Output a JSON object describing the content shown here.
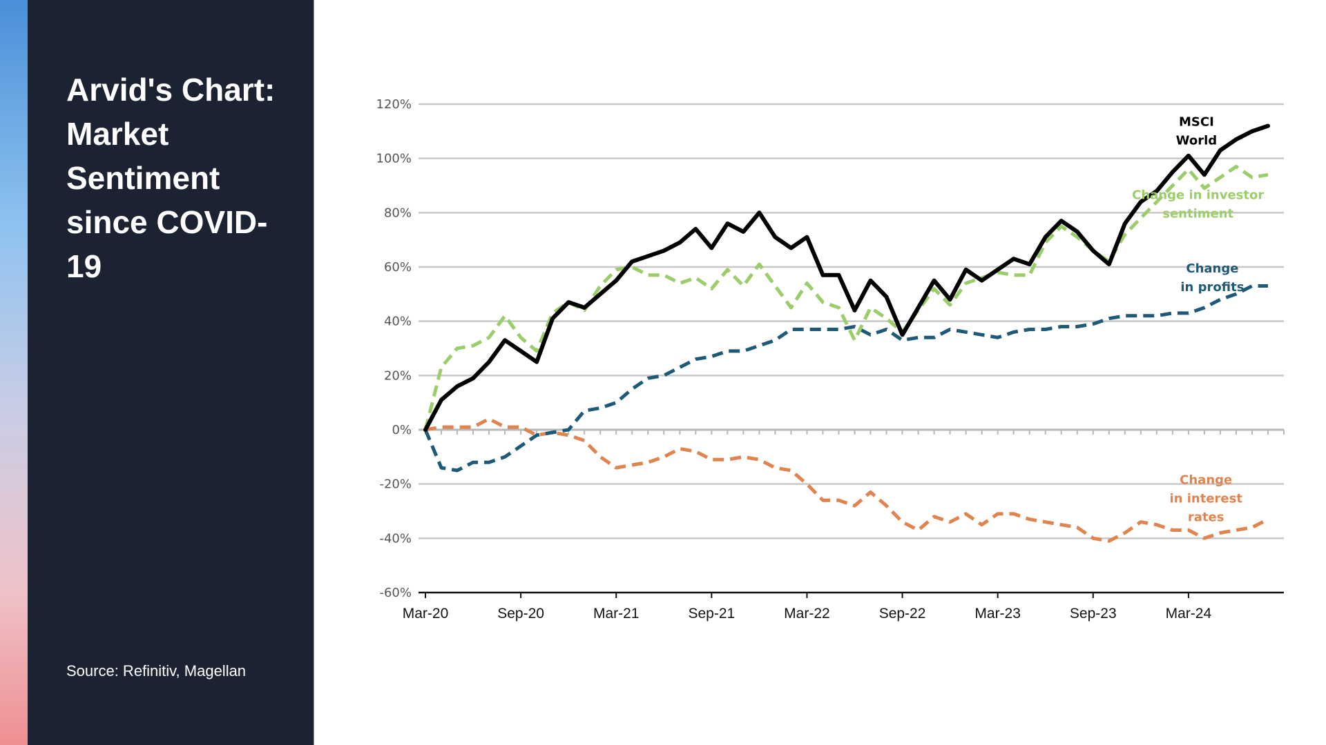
{
  "sidebar": {
    "title": "Arvid's Chart: Market Sentiment since COVID-19",
    "source": "Source: Refinitiv, Magellan"
  },
  "colors": {
    "sidebar_bg": "#1b2231",
    "msci": "#000000",
    "investor": "#9ccd6b",
    "profits": "#1e5a78",
    "rates": "#e0844f",
    "grid": "#c8c8c8"
  },
  "chart_data": {
    "type": "line",
    "title": "",
    "xlabel": "",
    "ylabel": "",
    "ylim": [
      -60,
      120
    ],
    "yticks": [
      120,
      100,
      80,
      60,
      40,
      20,
      0,
      -20,
      -40,
      -60
    ],
    "ytick_labels": [
      "120%",
      "100%",
      "80%",
      "60%",
      "40%",
      "20%",
      "0%",
      "-20%",
      "-40%",
      "-60%"
    ],
    "xlim": [
      0,
      54
    ],
    "xtick_positions": [
      0,
      6,
      12,
      18,
      24,
      30,
      36,
      42,
      48
    ],
    "xtick_labels": [
      "Mar-20",
      "Sep-20",
      "Mar-21",
      "Sep-21",
      "Mar-22",
      "Sep-22",
      "Mar-23",
      "Sep-23",
      "Mar-24"
    ],
    "series": [
      {
        "name": "MSCI World",
        "label_lines": [
          "MSCI",
          "World"
        ],
        "style": "solid",
        "color": "#000000",
        "label_at": [
          48.5,
          112
        ],
        "label_anchor": "middle",
        "points": [
          [
            0,
            0
          ],
          [
            1,
            11
          ],
          [
            2,
            16
          ],
          [
            3,
            19
          ],
          [
            4,
            25
          ],
          [
            5,
            33
          ],
          [
            6,
            29
          ],
          [
            7,
            25
          ],
          [
            8,
            41
          ],
          [
            9,
            47
          ],
          [
            10,
            45
          ],
          [
            11,
            50
          ],
          [
            12,
            55
          ],
          [
            13,
            62
          ],
          [
            14,
            64
          ],
          [
            15,
            66
          ],
          [
            16,
            69
          ],
          [
            17,
            74
          ],
          [
            18,
            67
          ],
          [
            19,
            76
          ],
          [
            20,
            73
          ],
          [
            21,
            80
          ],
          [
            22,
            71
          ],
          [
            23,
            67
          ],
          [
            24,
            71
          ],
          [
            25,
            57
          ],
          [
            26,
            57
          ],
          [
            27,
            44
          ],
          [
            28,
            55
          ],
          [
            29,
            49
          ],
          [
            30,
            35
          ],
          [
            31,
            45
          ],
          [
            32,
            55
          ],
          [
            33,
            48
          ],
          [
            34,
            59
          ],
          [
            35,
            55
          ],
          [
            36,
            59
          ],
          [
            37,
            63
          ],
          [
            38,
            61
          ],
          [
            39,
            71
          ],
          [
            40,
            77
          ],
          [
            41,
            73
          ],
          [
            42,
            66
          ],
          [
            43,
            61
          ],
          [
            44,
            76
          ],
          [
            45,
            84
          ],
          [
            46,
            88
          ],
          [
            47,
            95
          ],
          [
            48,
            101
          ],
          [
            49,
            94
          ],
          [
            50,
            103
          ],
          [
            51,
            107
          ],
          [
            52,
            110
          ],
          [
            53,
            112
          ]
        ]
      },
      {
        "name": "Change in investor sentiment",
        "label_lines": [
          "Change in investor",
          "sentiment"
        ],
        "style": "dashed",
        "color": "#9ccd6b",
        "label_at": [
          48.6,
          85
        ],
        "label_anchor": "middle",
        "points": [
          [
            0,
            0
          ],
          [
            1,
            23
          ],
          [
            2,
            30
          ],
          [
            3,
            31
          ],
          [
            4,
            34
          ],
          [
            5,
            42
          ],
          [
            6,
            34
          ],
          [
            7,
            29
          ],
          [
            8,
            43
          ],
          [
            9,
            47
          ],
          [
            10,
            44
          ],
          [
            11,
            53
          ],
          [
            12,
            59
          ],
          [
            13,
            60
          ],
          [
            14,
            57
          ],
          [
            15,
            57
          ],
          [
            16,
            54
          ],
          [
            17,
            56
          ],
          [
            18,
            52
          ],
          [
            19,
            59
          ],
          [
            20,
            53
          ],
          [
            21,
            61
          ],
          [
            22,
            53
          ],
          [
            23,
            45
          ],
          [
            24,
            54
          ],
          [
            25,
            47
          ],
          [
            26,
            45
          ],
          [
            27,
            33
          ],
          [
            28,
            45
          ],
          [
            29,
            41
          ],
          [
            30,
            36
          ],
          [
            31,
            44
          ],
          [
            32,
            52
          ],
          [
            33,
            46
          ],
          [
            34,
            54
          ],
          [
            35,
            56
          ],
          [
            36,
            58
          ],
          [
            37,
            57
          ],
          [
            38,
            57
          ],
          [
            39,
            69
          ],
          [
            40,
            75
          ],
          [
            41,
            71
          ],
          [
            42,
            66
          ],
          [
            43,
            62
          ],
          [
            44,
            72
          ],
          [
            45,
            78
          ],
          [
            46,
            84
          ],
          [
            47,
            90
          ],
          [
            48,
            96
          ],
          [
            49,
            89
          ],
          [
            50,
            93
          ],
          [
            51,
            97
          ],
          [
            52,
            93
          ],
          [
            53,
            94
          ]
        ]
      },
      {
        "name": "Change in profits",
        "label_lines": [
          "Change",
          "in profits"
        ],
        "style": "dashed",
        "color": "#1e5a78",
        "label_at": [
          49.5,
          58
        ],
        "label_anchor": "middle",
        "points": [
          [
            0,
            0
          ],
          [
            1,
            -14
          ],
          [
            2,
            -15
          ],
          [
            3,
            -12
          ],
          [
            4,
            -12
          ],
          [
            5,
            -10
          ],
          [
            6,
            -6
          ],
          [
            7,
            -2
          ],
          [
            8,
            -1
          ],
          [
            9,
            0
          ],
          [
            10,
            7
          ],
          [
            11,
            8
          ],
          [
            12,
            10
          ],
          [
            13,
            15
          ],
          [
            14,
            19
          ],
          [
            15,
            20
          ],
          [
            16,
            23
          ],
          [
            17,
            26
          ],
          [
            18,
            27
          ],
          [
            19,
            29
          ],
          [
            20,
            29
          ],
          [
            21,
            31
          ],
          [
            22,
            33
          ],
          [
            23,
            37
          ],
          [
            24,
            37
          ],
          [
            25,
            37
          ],
          [
            26,
            37
          ],
          [
            27,
            38
          ],
          [
            28,
            35
          ],
          [
            29,
            37
          ],
          [
            30,
            33
          ],
          [
            31,
            34
          ],
          [
            32,
            34
          ],
          [
            33,
            37
          ],
          [
            34,
            36
          ],
          [
            35,
            35
          ],
          [
            36,
            34
          ],
          [
            37,
            36
          ],
          [
            38,
            37
          ],
          [
            39,
            37
          ],
          [
            40,
            38
          ],
          [
            41,
            38
          ],
          [
            42,
            39
          ],
          [
            43,
            41
          ],
          [
            44,
            42
          ],
          [
            45,
            42
          ],
          [
            46,
            42
          ],
          [
            47,
            43
          ],
          [
            48,
            43
          ],
          [
            49,
            45
          ],
          [
            50,
            48
          ],
          [
            51,
            50
          ],
          [
            52,
            53
          ],
          [
            53,
            53
          ]
        ]
      },
      {
        "name": "Change in interest rates",
        "label_lines": [
          "Change",
          "in interest",
          "rates"
        ],
        "style": "dashed",
        "color": "#e0844f",
        "label_at": [
          49.1,
          -20
        ],
        "label_anchor": "middle",
        "points": [
          [
            0,
            0
          ],
          [
            1,
            1
          ],
          [
            2,
            1
          ],
          [
            3,
            1
          ],
          [
            4,
            4
          ],
          [
            5,
            1
          ],
          [
            6,
            1
          ],
          [
            7,
            -2
          ],
          [
            8,
            -1
          ],
          [
            9,
            -2
          ],
          [
            10,
            -4
          ],
          [
            11,
            -10
          ],
          [
            12,
            -14
          ],
          [
            13,
            -13
          ],
          [
            14,
            -12
          ],
          [
            15,
            -10
          ],
          [
            16,
            -7
          ],
          [
            17,
            -8
          ],
          [
            18,
            -11
          ],
          [
            19,
            -11
          ],
          [
            20,
            -10
          ],
          [
            21,
            -11
          ],
          [
            22,
            -14
          ],
          [
            23,
            -15
          ],
          [
            24,
            -20
          ],
          [
            25,
            -26
          ],
          [
            26,
            -26
          ],
          [
            27,
            -28
          ],
          [
            28,
            -23
          ],
          [
            29,
            -28
          ],
          [
            30,
            -34
          ],
          [
            31,
            -37
          ],
          [
            32,
            -32
          ],
          [
            33,
            -34
          ],
          [
            34,
            -31
          ],
          [
            35,
            -35
          ],
          [
            36,
            -31
          ],
          [
            37,
            -31
          ],
          [
            38,
            -33
          ],
          [
            39,
            -34
          ],
          [
            40,
            -35
          ],
          [
            41,
            -36
          ],
          [
            42,
            -40
          ],
          [
            43,
            -41
          ],
          [
            44,
            -38
          ],
          [
            45,
            -34
          ],
          [
            46,
            -35
          ],
          [
            47,
            -37
          ],
          [
            48,
            -37
          ],
          [
            49,
            -40
          ],
          [
            50,
            -38
          ],
          [
            51,
            -37
          ],
          [
            52,
            -36
          ],
          [
            53,
            -33
          ]
        ]
      }
    ]
  }
}
